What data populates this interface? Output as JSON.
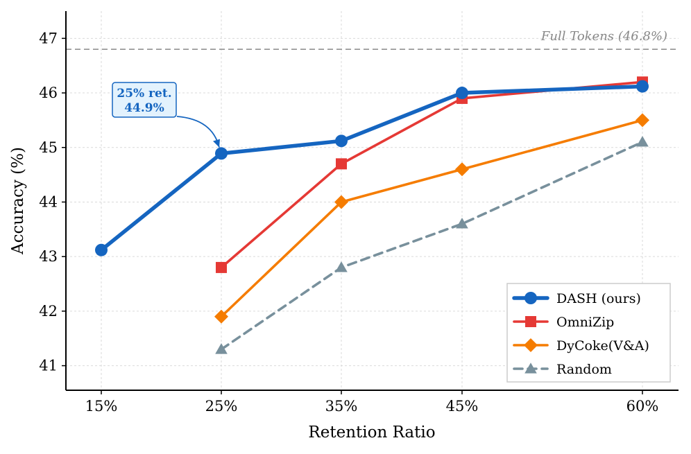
{
  "chart_data": {
    "type": "line",
    "title": "",
    "xlabel": "Retention Ratio",
    "ylabel": "Accuracy (%)",
    "categories": [
      "15%",
      "25%",
      "35%",
      "45%",
      "60%"
    ],
    "x": [
      15,
      25,
      35,
      45,
      60
    ],
    "ylim": [
      40.55,
      47.5
    ],
    "yticks": [
      41,
      42,
      43,
      44,
      45,
      46,
      47
    ],
    "grid": true,
    "legend_position": "lower-right",
    "reference_line": {
      "label": "Full Tokens (46.8%)",
      "value": 46.8,
      "color": "#999999"
    },
    "annotation": {
      "line1": "25% ret.",
      "line2": "44.9%",
      "x": 25,
      "y": 44.9,
      "color": "#1565c0"
    },
    "series": [
      {
        "name": "DASH (ours)",
        "x": [
          15,
          25,
          35,
          45,
          60
        ],
        "values": [
          43.12,
          44.89,
          45.12,
          46.0,
          46.12
        ],
        "color": "#1565c0",
        "marker": "circle",
        "style": "solid",
        "width": "thick"
      },
      {
        "name": "OmniZip",
        "x": [
          25,
          35,
          45,
          60
        ],
        "values": [
          42.8,
          44.7,
          45.9,
          46.2
        ],
        "color": "#e53935",
        "marker": "square",
        "style": "solid",
        "width": "normal"
      },
      {
        "name": "DyCoke(V&A)",
        "x": [
          25,
          35,
          45,
          60
        ],
        "values": [
          41.9,
          44.0,
          44.6,
          45.5
        ],
        "color": "#f57c00",
        "marker": "diamond",
        "style": "solid",
        "width": "normal"
      },
      {
        "name": "Random",
        "x": [
          25,
          35,
          45,
          60
        ],
        "values": [
          41.3,
          42.8,
          43.6,
          45.1
        ],
        "color": "#78909c",
        "marker": "triangle",
        "style": "dashed",
        "width": "normal"
      }
    ]
  }
}
